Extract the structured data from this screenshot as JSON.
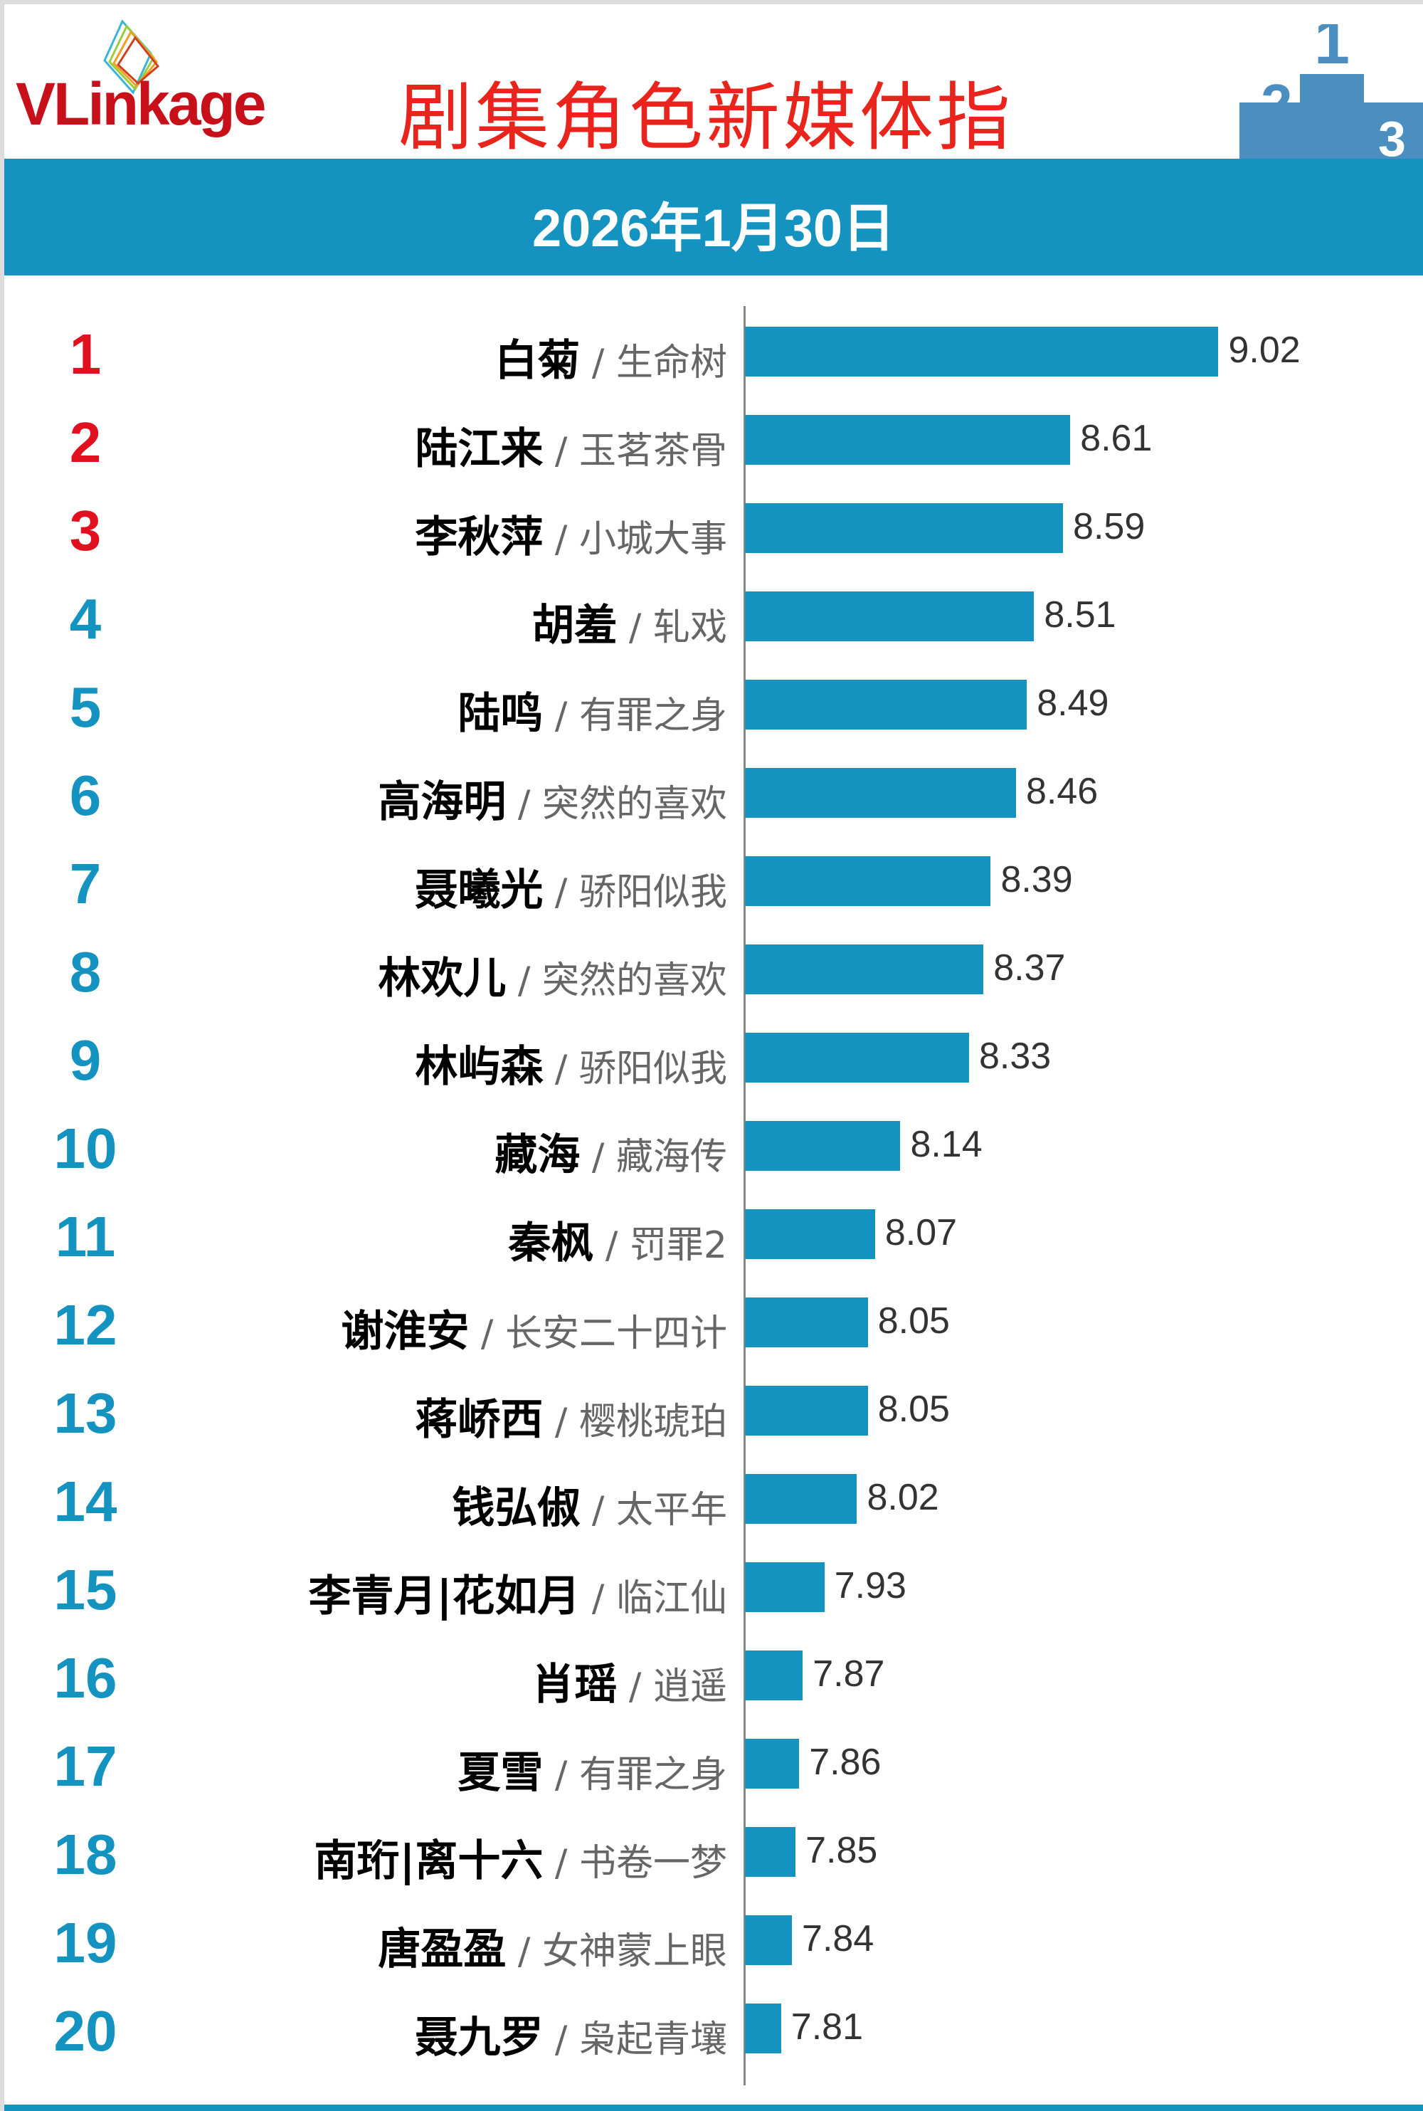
{
  "header": {
    "logo": "VLinkage",
    "title": "剧集角色新媒体指",
    "date": "2026年1月30日"
  },
  "colors": {
    "bar": "#1493c0",
    "top_rank": "#e0101e",
    "rank": "#1493c0",
    "title": "#e8241c"
  },
  "chart_data": {
    "type": "bar",
    "orientation": "horizontal",
    "title": "剧集角色新媒体指",
    "subtitle": "2026年1月30日",
    "grid": false,
    "rows": [
      {
        "rank": "1",
        "name": "白菊",
        "show": "生命树",
        "value": 9.02
      },
      {
        "rank": "2",
        "name": "陆江来",
        "show": "玉茗茶骨",
        "value": 8.61
      },
      {
        "rank": "3",
        "name": "李秋萍",
        "show": "小城大事",
        "value": 8.59
      },
      {
        "rank": "4",
        "name": "胡羞",
        "show": "轧戏",
        "value": 8.51
      },
      {
        "rank": "5",
        "name": "陆鸣",
        "show": "有罪之身",
        "value": 8.49
      },
      {
        "rank": "6",
        "name": "高海明",
        "show": "突然的喜欢",
        "value": 8.46
      },
      {
        "rank": "7",
        "name": "聂曦光",
        "show": "骄阳似我",
        "value": 8.39
      },
      {
        "rank": "8",
        "name": "林欢儿",
        "show": "突然的喜欢",
        "value": 8.37
      },
      {
        "rank": "9",
        "name": "林屿森",
        "show": "骄阳似我",
        "value": 8.33
      },
      {
        "rank": "10",
        "name": "藏海",
        "show": "藏海传",
        "value": 8.14
      },
      {
        "rank": "11",
        "name": "秦枫",
        "show": "罚罪2",
        "value": 8.07
      },
      {
        "rank": "12",
        "name": "谢淮安",
        "show": "长安二十四计",
        "value": 8.05
      },
      {
        "rank": "13",
        "name": "蒋峤西",
        "show": "樱桃琥珀",
        "value": 8.05
      },
      {
        "rank": "14",
        "name": "钱弘俶",
        "show": "太平年",
        "value": 8.02
      },
      {
        "rank": "15",
        "name": "李青月|花如月",
        "show": "临江仙",
        "value": 7.93
      },
      {
        "rank": "16",
        "name": "肖瑶",
        "show": "逍遥",
        "value": 7.87
      },
      {
        "rank": "17",
        "name": "夏雪",
        "show": "有罪之身",
        "value": 7.86
      },
      {
        "rank": "18",
        "name": "南珩|离十六",
        "show": "书卷一梦",
        "value": 7.85
      },
      {
        "rank": "19",
        "name": "唐盈盈",
        "show": "女神蒙上眼",
        "value": 7.84
      },
      {
        "rank": "20",
        "name": "聂九罗",
        "show": "枭起青壤",
        "value": 7.81
      }
    ],
    "separator": " / "
  }
}
